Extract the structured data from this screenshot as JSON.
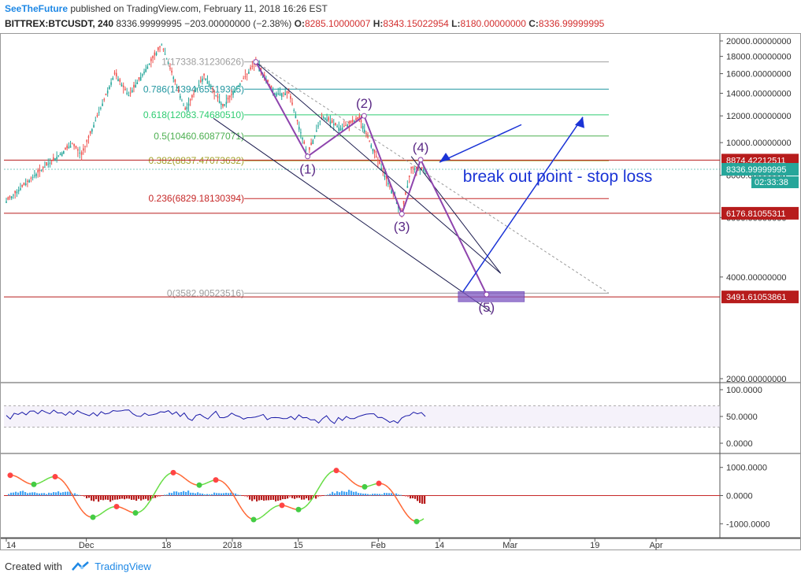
{
  "header": {
    "author": "SeeTheFuture",
    "published": "published on TradingView.com, February 11, 2018 16:26 EST",
    "symbol": "BITTREX:BTCUSDT, 240",
    "last": "8336.99999995",
    "change": "−203.00000000 (−2.38%)",
    "o_label": "O:",
    "o_value": "8285.10000007",
    "h_label": "H:",
    "h_value": "8343.15022954",
    "l_label": "L:",
    "l_value": "8180.00000000",
    "c_label": "C:",
    "c_value": "8336.99999995"
  },
  "footer": {
    "created_with": "Created with",
    "brand": "TradingView"
  },
  "colors": {
    "bull": "#26a69a",
    "bear": "#ef5350",
    "wave": "#8e44ad",
    "arrow": "#1a33d6",
    "level_red": "#b71c1c",
    "rsi": "#1a1aa8",
    "accent": "#1e88e5"
  },
  "chart_data": [
    {
      "type": "line",
      "title": "BITTREX:BTCUSDT, 240",
      "y_scale": "log",
      "ylim": [
        1800,
        21000
      ],
      "y_ticks": [
        "20000.00000000",
        "18000.00000000",
        "16000.00000000",
        "14000.00000000",
        "12000.00000000",
        "10000.00000000",
        "8000.00000000",
        "6000.00000000",
        "4000.00000000",
        "2000.00000000"
      ],
      "x_ticks": [
        "14",
        "Dec",
        "18",
        "2018",
        "15",
        "Feb",
        "14",
        "Mar",
        "19",
        "Apr"
      ],
      "price_path": [
        {
          "x": "2017-11-14",
          "y": 6700
        },
        {
          "x": "2017-11-20",
          "y": 8000
        },
        {
          "x": "2017-11-28",
          "y": 9900
        },
        {
          "x": "2017-11-30",
          "y": 9200
        },
        {
          "x": "2017-12-07",
          "y": 16000
        },
        {
          "x": "2017-12-10",
          "y": 13800
        },
        {
          "x": "2017-12-14",
          "y": 16800
        },
        {
          "x": "2017-12-17",
          "y": 19500
        },
        {
          "x": "2017-12-22",
          "y": 12500
        },
        {
          "x": "2017-12-26",
          "y": 15800
        },
        {
          "x": "2017-12-30",
          "y": 12800
        },
        {
          "x": "2018-01-03",
          "y": 15200
        },
        {
          "x": "2018-01-06",
          "y": 17300
        },
        {
          "x": "2018-01-10",
          "y": 14000
        },
        {
          "x": "2018-01-13",
          "y": 14000
        },
        {
          "x": "2018-01-17",
          "y": 9200
        },
        {
          "x": "2018-01-20",
          "y": 12000
        },
        {
          "x": "2018-01-24",
          "y": 11000
        },
        {
          "x": "2018-01-28",
          "y": 11800
        },
        {
          "x": "2018-02-02",
          "y": 8200
        },
        {
          "x": "2018-02-06",
          "y": 6200
        },
        {
          "x": "2018-02-08",
          "y": 8400
        },
        {
          "x": "2018-02-11",
          "y": 8337
        }
      ],
      "fib_levels": [
        {
          "label": "1(17338.31230626)",
          "value": 17338.31230626,
          "color": "#9e9e9e"
        },
        {
          "label": "0.786(14394.65519305)",
          "value": 14394.65519305,
          "color": "#2196a0"
        },
        {
          "label": "0.618(12083.74680510)",
          "value": 12083.7468051,
          "color": "#2ecc71"
        },
        {
          "label": "0.5(10460.60877071)",
          "value": 10460.60877071,
          "color": "#4caf50"
        },
        {
          "label": "0.382(8837.47073632)",
          "value": 8837.47073632,
          "color": "#a3a32a"
        },
        {
          "label": "0.236(6829.18130394)",
          "value": 6829.18130394,
          "color": "#c62828"
        },
        {
          "label": "0(3582.90523516)",
          "value": 3582.90523516,
          "color": "#9e9e9e"
        }
      ],
      "wave_points": [
        {
          "label": "(1)",
          "x": "2018-01-17",
          "y": 9100
        },
        {
          "label": "(2)",
          "x": "2018-01-29",
          "y": 12000
        },
        {
          "label": "(3)",
          "x": "2018-02-06",
          "y": 6150
        },
        {
          "label": "(4)",
          "x": "2018-02-10",
          "y": 8900
        },
        {
          "label": "(5)",
          "x": "2018-02-24",
          "y": 3550
        }
      ],
      "hlines": [
        {
          "label": "8874.42212511",
          "value": 8874.42212511,
          "color": "#b71c1c"
        },
        {
          "label": "6176.81055311",
          "value": 6176.81055311,
          "color": "#b71c1c"
        },
        {
          "label": "3491.61053861",
          "value": 3491.61053861,
          "color": "#b71c1c"
        }
      ],
      "last_price": {
        "label": "8336.99999995",
        "value": 8336.99999995,
        "countdown": "02:33:38"
      },
      "annotation": "break out point - stop loss"
    },
    {
      "type": "line",
      "title": "",
      "ylim": [
        0,
        100
      ],
      "y_ticks": [
        "100.0000",
        "50.0000",
        "0.0000"
      ],
      "bands": [
        70,
        30
      ],
      "values": [
        52,
        56,
        58,
        60,
        55,
        58,
        62,
        57,
        59,
        61,
        54,
        57,
        59,
        56,
        60,
        62,
        55,
        50,
        52,
        55,
        58,
        54,
        50,
        46,
        52,
        49,
        53,
        48,
        50,
        52,
        45,
        48,
        51,
        44,
        48,
        46,
        50,
        53,
        48,
        44,
        46,
        42,
        48,
        50,
        46,
        52,
        55,
        48,
        44,
        42,
        47,
        52,
        55,
        50
      ]
    },
    {
      "type": "bar",
      "title": "",
      "ylim": [
        -1300,
        1300
      ],
      "y_ticks": [
        "1000.0000",
        "0.0000",
        "-1000.0000"
      ]
    }
  ]
}
